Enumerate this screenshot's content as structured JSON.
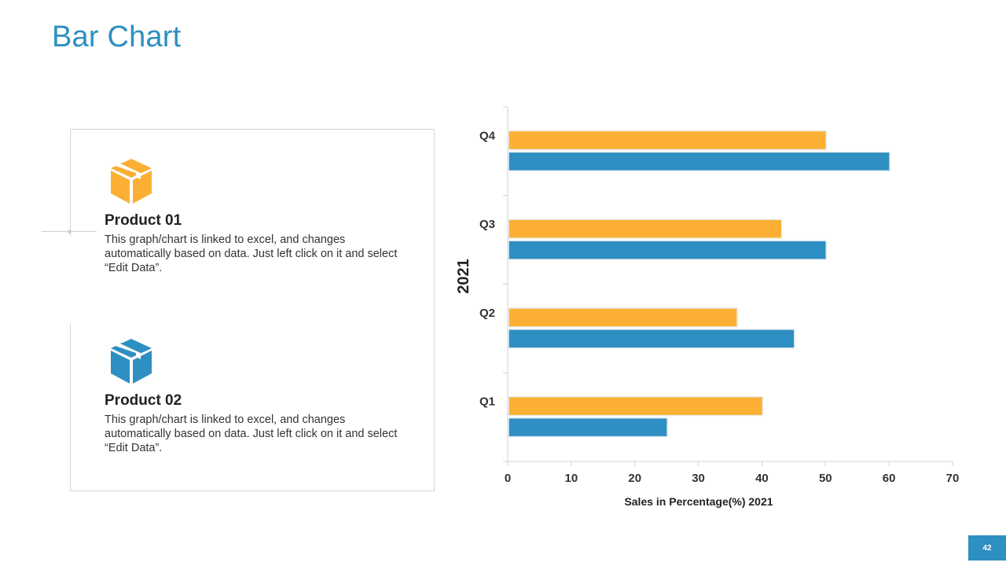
{
  "slide": {
    "title": "Bar Chart",
    "page_number": "42"
  },
  "products": [
    {
      "name": "Product 01",
      "description": "This graph/chart is linked to excel, and changes automatically based on data. Just left click on it and select “Edit Data”.",
      "icon": "box-icon",
      "color": "#fbb034"
    },
    {
      "name": "Product 02",
      "description": "This graph/chart is linked to excel, and changes automatically based on data. Just left click on it and select “Edit Data”.",
      "icon": "box-icon",
      "color": "#2e8fc2"
    }
  ],
  "chart_data": {
    "type": "bar",
    "orientation": "horizontal",
    "categories": [
      "Q1",
      "Q2",
      "Q3",
      "Q4"
    ],
    "series": [
      {
        "name": "Product 01",
        "color": "#fbb034",
        "values": [
          40,
          36,
          43,
          50
        ]
      },
      {
        "name": "Product 02",
        "color": "#2e8fc2",
        "values": [
          25,
          45,
          50,
          60
        ]
      }
    ],
    "xlabel": "Sales in Percentage(%) 2021",
    "ylabel": "2021",
    "xlim": [
      0,
      70
    ],
    "xticks": [
      0,
      10,
      20,
      30,
      40,
      50,
      60,
      70
    ],
    "grid": false
  }
}
